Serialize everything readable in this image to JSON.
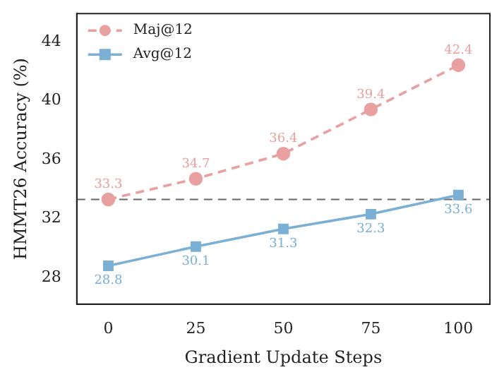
{
  "chart_data": {
    "type": "line",
    "xlabel": "Gradient Update Steps",
    "ylabel": "HMMT26 Accuracy (%)",
    "x": [
      0,
      25,
      50,
      75,
      100
    ],
    "series": [
      {
        "name": "Maj@12",
        "color": "#e8a0a0",
        "values": [
          33.3,
          34.7,
          36.4,
          39.4,
          42.4
        ],
        "marker": "circle",
        "line_style": "dashed"
      },
      {
        "name": "Avg@12",
        "color": "#7bafd4",
        "values": [
          28.8,
          30.1,
          31.3,
          32.3,
          33.6
        ],
        "marker": "square",
        "line_style": "solid"
      }
    ],
    "xlim": [
      -9,
      109
    ],
    "xticks": [
      0,
      25,
      50,
      75,
      100
    ],
    "ylim": [
      26.2,
      45.9
    ],
    "yticks": [
      28,
      32,
      36,
      40,
      44
    ],
    "ref_lines": [
      {
        "axis": "y",
        "value": 33.3,
        "color": "#666666",
        "line_style": "dashed"
      }
    ],
    "data_labels": true,
    "legend": "top left",
    "grid": false
  }
}
